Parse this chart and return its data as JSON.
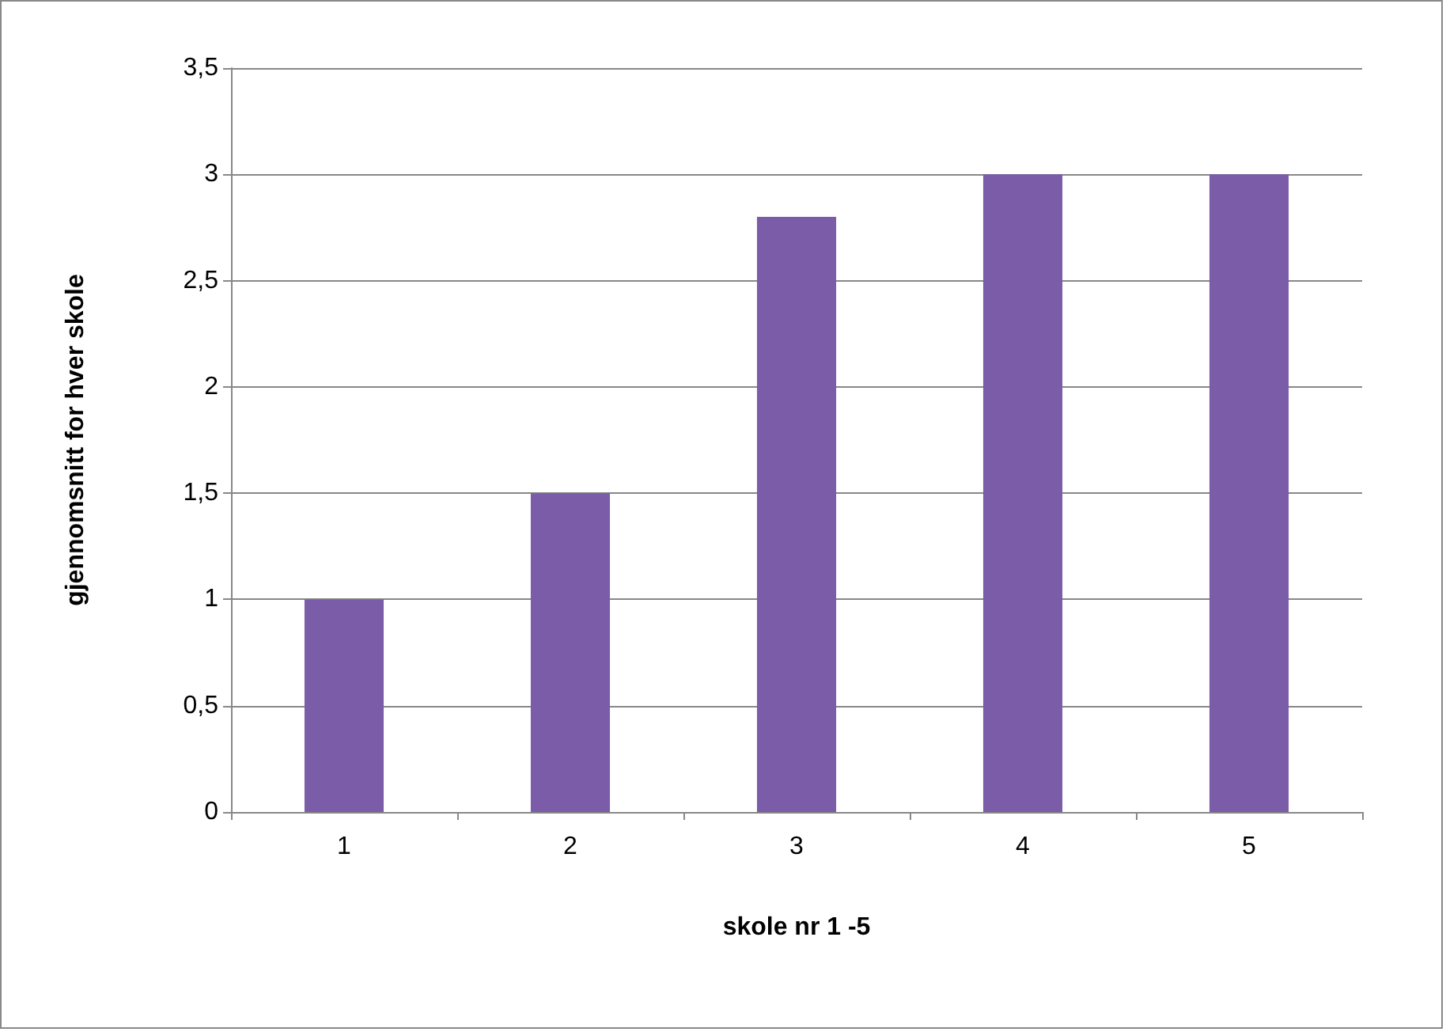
{
  "chart_data": {
    "type": "bar",
    "xlabel": "skole nr 1 -5",
    "ylabel": "gjennomsnitt for hver skole",
    "categories": [
      "1",
      "2",
      "3",
      "4",
      "5"
    ],
    "values": [
      1,
      1.5,
      2.8,
      3,
      3
    ],
    "color": "#7b5ca8",
    "ylim": [
      0,
      3.5
    ],
    "yticks": [
      0,
      {
        "value": 0.5,
        "label": "0,5"
      },
      1,
      {
        "value": 1.5,
        "label": "1,5"
      },
      2,
      {
        "value": 2.5,
        "label": "2,5"
      },
      3,
      {
        "value": 3.5,
        "label": "3,5"
      }
    ],
    "grid": "y"
  }
}
